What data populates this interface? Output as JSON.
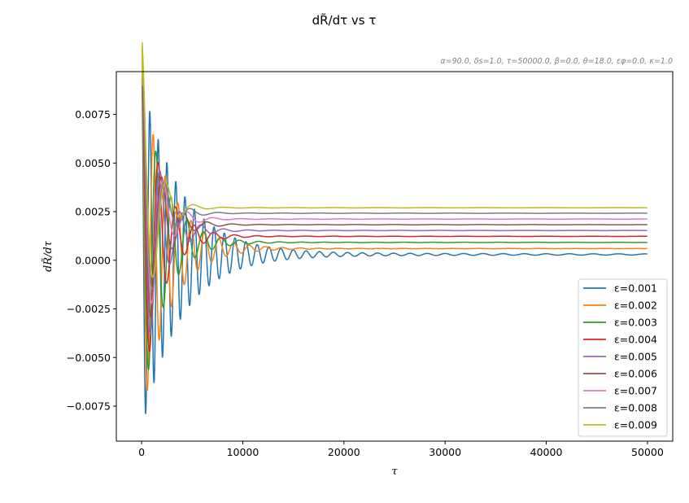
{
  "chart_data": {
    "type": "line",
    "title": "dR̃/dτ vs τ",
    "subtitle": "α=90.0, δs=1.0, τ=50000.0, β=0.0, θ=18.0, εφ=0.0, κ=1.0",
    "xlabel": "τ",
    "ylabel": "dR̃/dτ",
    "xlim": [
      -2500,
      52500
    ],
    "ylim": [
      -0.0093,
      0.0097
    ],
    "xticks": [
      0,
      10000,
      20000,
      30000,
      40000,
      50000
    ],
    "xtick_labels": [
      "0",
      "10000",
      "20000",
      "30000",
      "40000",
      "50000"
    ],
    "yticks": [
      -0.0075,
      -0.005,
      -0.0025,
      0.0,
      0.0025,
      0.005,
      0.0075
    ],
    "ytick_labels": [
      "−0.0075",
      "−0.0050",
      "−0.0025",
      "0.0000",
      "0.0025",
      "0.0050",
      "0.0075"
    ],
    "grid": false,
    "legend_position": "lower-right",
    "x_max": 50000,
    "series": [
      {
        "name": "ε=0.001",
        "color": "#1f77b4",
        "final": 0.0003,
        "period": 800,
        "settle": 12000
      },
      {
        "name": "ε=0.002",
        "color": "#ff7f0e",
        "final": 0.0006,
        "period": 1130,
        "settle": 8500
      },
      {
        "name": "ε=0.003",
        "color": "#2ca02c",
        "final": 0.00092,
        "period": 1390,
        "settle": 6900
      },
      {
        "name": "ε=0.004",
        "color": "#d62728",
        "final": 0.00123,
        "period": 1600,
        "settle": 6000
      },
      {
        "name": "ε=0.005",
        "color": "#9467bd",
        "final": 0.00153,
        "period": 1790,
        "settle": 5400
      },
      {
        "name": "ε=0.006",
        "color": "#8c564b",
        "final": 0.00183,
        "period": 1960,
        "settle": 4900
      },
      {
        "name": "ε=0.007",
        "color": "#e377c2",
        "final": 0.00212,
        "period": 2120,
        "settle": 4500
      },
      {
        "name": "ε=0.008",
        "color": "#7f7f7f",
        "final": 0.00242,
        "period": 2260,
        "settle": 4200
      },
      {
        "name": "ε=0.009",
        "color": "#bcbd22",
        "final": 0.0027,
        "period": 2400,
        "settle": 4000
      }
    ]
  }
}
